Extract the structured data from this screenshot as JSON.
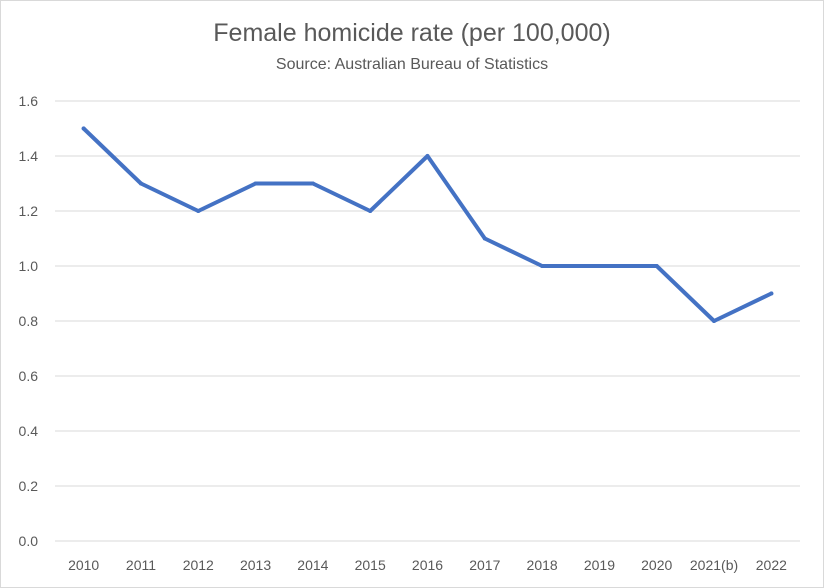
{
  "chart_data": {
    "type": "line",
    "title": "Female homicide rate (per 100,000)",
    "subtitle": "Source: Australian Bureau of Statistics",
    "xlabel": "",
    "ylabel": "",
    "categories": [
      "2010",
      "2011",
      "2012",
      "2013",
      "2014",
      "2015",
      "2016",
      "2017",
      "2018",
      "2019",
      "2020",
      "2021(b)",
      "2022"
    ],
    "series": [
      {
        "values": [
          1.5,
          1.3,
          1.2,
          1.3,
          1.3,
          1.2,
          1.4,
          1.1,
          1.0,
          1.0,
          1.0,
          0.8,
          0.9
        ]
      }
    ],
    "ylim": [
      0,
      1.6
    ],
    "yticks": [
      "0.0",
      "0.2",
      "0.4",
      "0.6",
      "0.8",
      "1.0",
      "1.2",
      "1.4",
      "1.6"
    ],
    "grid": true,
    "legend": "none",
    "colors": {
      "line": "#4472c4",
      "grid": "#d9d9d9",
      "text": "#595959"
    }
  }
}
